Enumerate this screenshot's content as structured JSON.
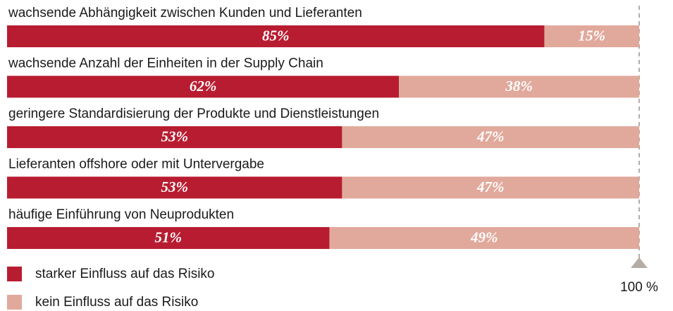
{
  "chart_data": {
    "type": "stacked-bar",
    "orientation": "horizontal",
    "categories": [
      "wachsende Abhängigkeit zwischen Kunden und Lieferanten",
      "wachsende Anzahl der Einheiten in der Supply Chain",
      "geringere Standardisierung der Produkte und Dienstleistungen",
      "Lieferanten offshore oder mit Untervergabe",
      "häufige Einführung von Neuprodukten"
    ],
    "series": [
      {
        "name": "starker Einfluss auf das Risiko",
        "color": "#b81c30",
        "values": [
          85,
          62,
          53,
          53,
          51
        ],
        "value_labels": [
          "85%",
          "62%",
          "53%",
          "53%",
          "51%"
        ]
      },
      {
        "name": "kein Einfluss auf das Risiko",
        "color": "#e1a99c",
        "values": [
          15,
          38,
          47,
          47,
          49
        ],
        "value_labels": [
          "15%",
          "38%",
          "47%",
          "47%",
          "49%"
        ]
      }
    ],
    "xlim": [
      0,
      100
    ],
    "xticks": [
      {
        "value": 100,
        "label": "100 %"
      }
    ],
    "legend": "bottom-left"
  }
}
